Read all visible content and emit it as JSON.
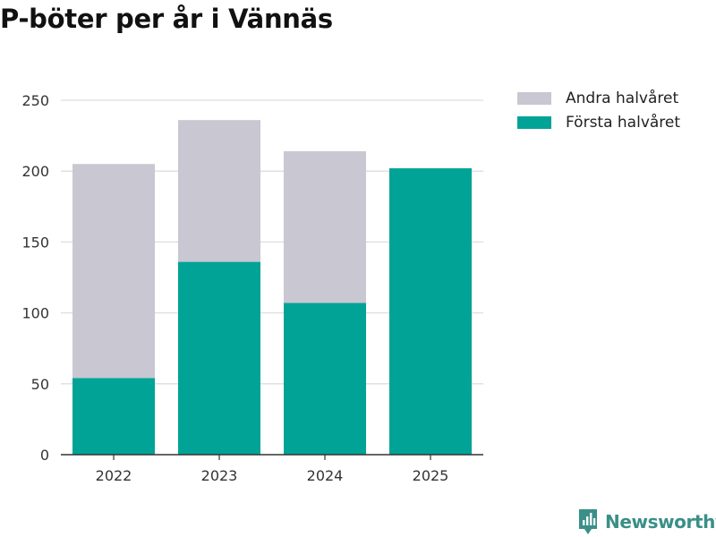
{
  "title": "P-böter per år i Vännäs",
  "brand": "Newsworthy",
  "chart_data": {
    "type": "bar",
    "stacked": true,
    "title": "P-böter per år i Vännäs",
    "xlabel": "",
    "ylabel": "",
    "categories": [
      "2022",
      "2023",
      "2024",
      "2025"
    ],
    "series": [
      {
        "name": "Första halvåret",
        "color": "#00a396",
        "values": [
          54,
          136,
          107,
          202
        ]
      },
      {
        "name": "Andra halvåret",
        "color": "#c8c7d2",
        "values": [
          151,
          100,
          107,
          0
        ]
      }
    ],
    "legend_order": [
      "Andra halvåret",
      "Första halvåret"
    ],
    "ylim": [
      0,
      250
    ],
    "yticks": [
      0,
      50,
      100,
      150,
      200,
      250
    ],
    "grid": true,
    "legend_position": "right"
  }
}
